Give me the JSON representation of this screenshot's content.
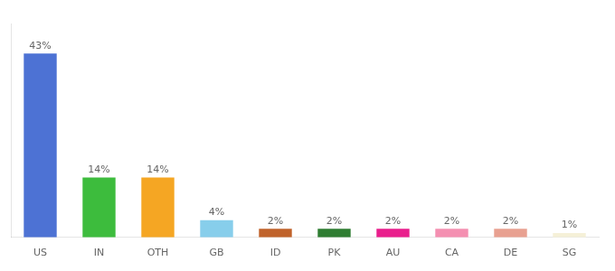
{
  "chart_data": {
    "type": "bar",
    "categories": [
      "US",
      "IN",
      "OTH",
      "GB",
      "ID",
      "PK",
      "AU",
      "CA",
      "DE",
      "SG"
    ],
    "values": [
      43,
      14,
      14,
      4,
      2,
      2,
      2,
      2,
      2,
      1
    ],
    "value_labels": [
      "43%",
      "14%",
      "14%",
      "4%",
      "2%",
      "2%",
      "2%",
      "2%",
      "2%",
      "1%"
    ],
    "data_labels": true,
    "colors": [
      "#4d72d4",
      "#3dbc3d",
      "#f5a623",
      "#87ceeb",
      "#c0622a",
      "#2e7d32",
      "#e91e8c",
      "#f48fb1",
      "#e8a090",
      "#f5f0d8"
    ],
    "ylim": [
      0,
      50
    ],
    "tick_labels": "x",
    "grid": false
  }
}
